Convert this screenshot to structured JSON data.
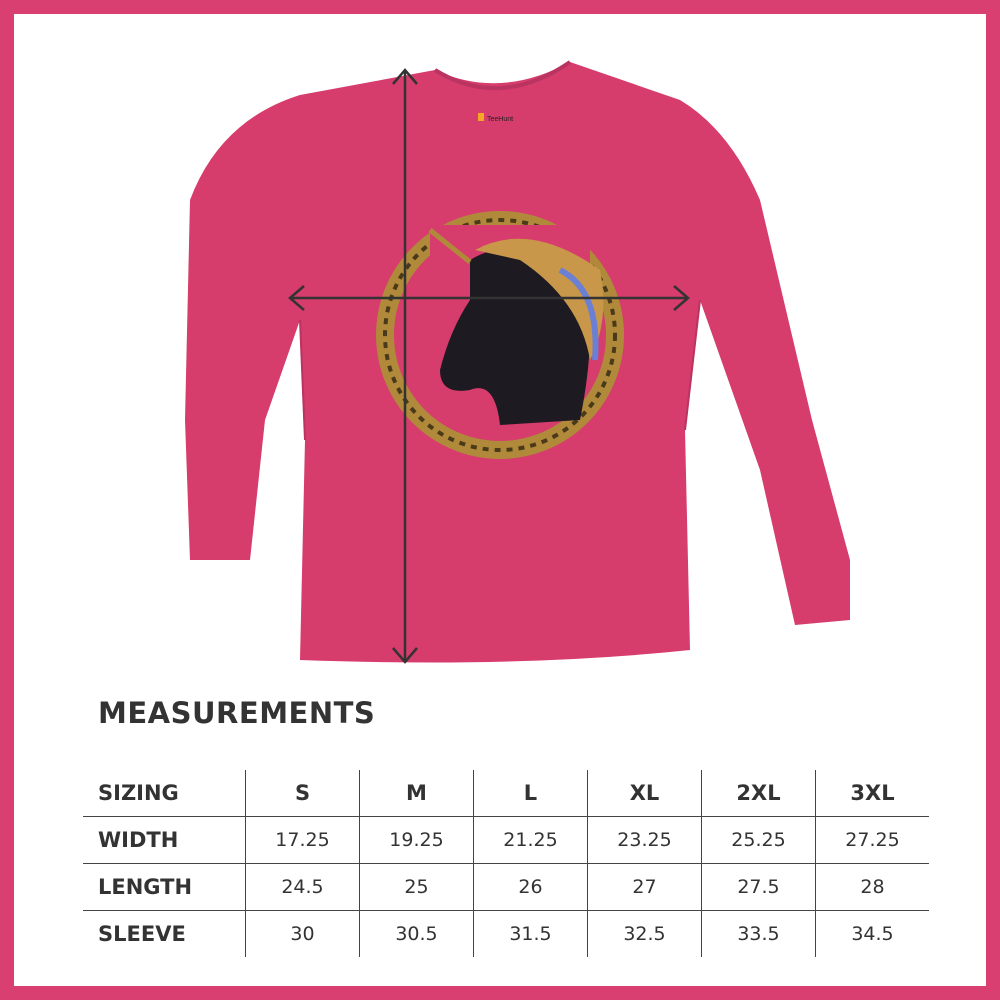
{
  "product": {
    "shirt_color": "#d63c6c",
    "border_color": "#d93f70",
    "brand_label": "TeeHunt",
    "graphic": "black unicorn head in golden celtic crescent moon"
  },
  "measurements": {
    "title": "MEASUREMENTS",
    "header": [
      "SIZING",
      "S",
      "M",
      "L",
      "XL",
      "2XL",
      "3XL"
    ],
    "rows": [
      {
        "label": "WIDTH",
        "values": [
          "17.25",
          "19.25",
          "21.25",
          "23.25",
          "25.25",
          "27.25"
        ]
      },
      {
        "label": "LENGTH",
        "values": [
          "24.5",
          "25",
          "26",
          "27",
          "27.5",
          "28"
        ]
      },
      {
        "label": "SLEEVE",
        "values": [
          "30",
          "30.5",
          "31.5",
          "32.5",
          "33.5",
          "34.5"
        ]
      }
    ]
  }
}
